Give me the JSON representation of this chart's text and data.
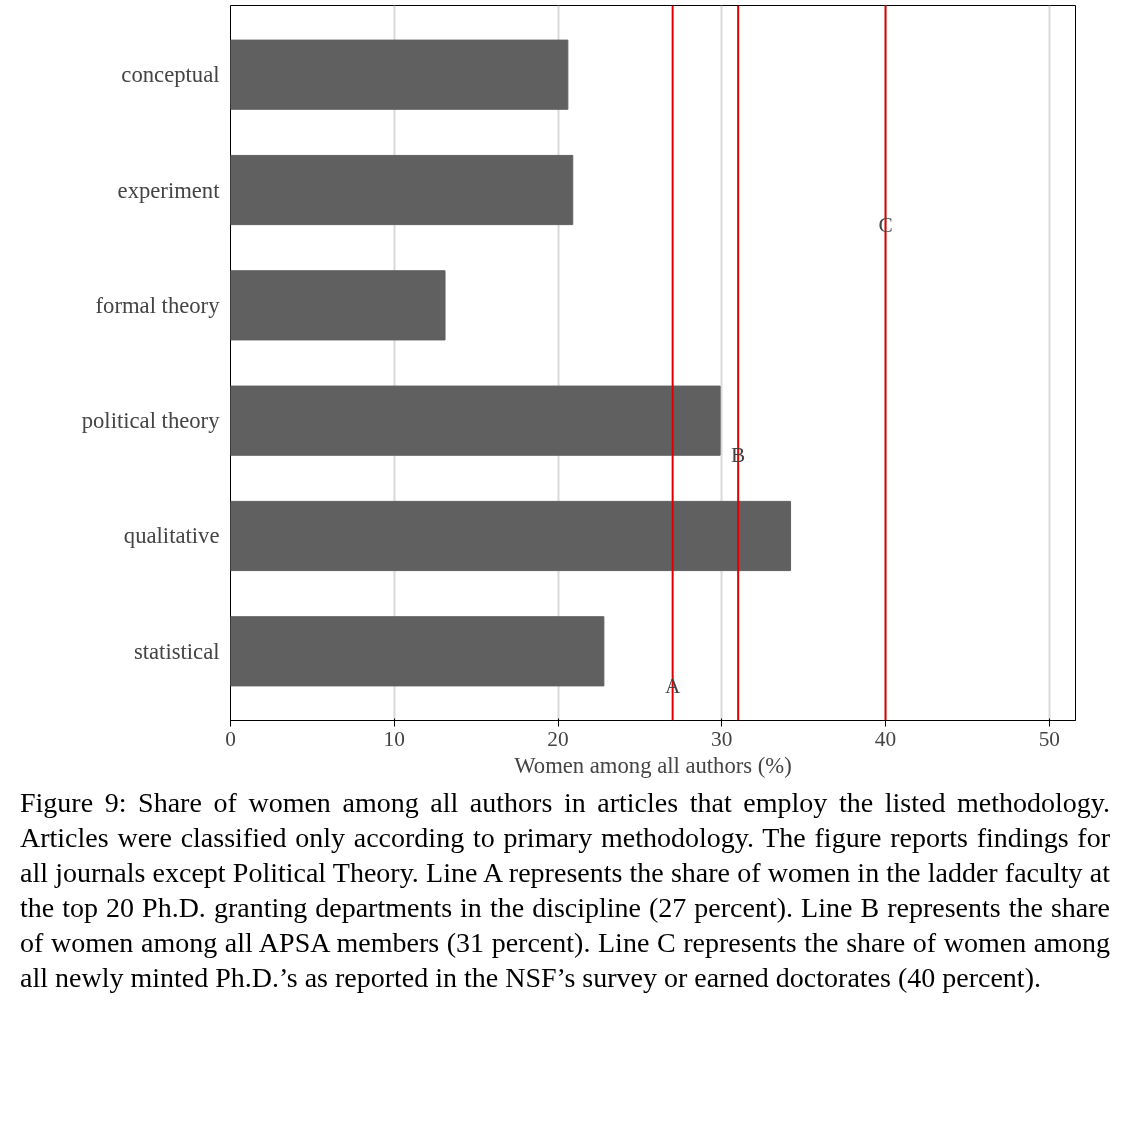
{
  "chart_data": {
    "type": "bar",
    "orientation": "horizontal",
    "xlabel": "Women among all authors (%)",
    "categories": [
      "conceptual",
      "experiment",
      "formal theory",
      "political theory",
      "qualitative",
      "statistical"
    ],
    "values": [
      20.6,
      20.9,
      13.1,
      29.9,
      34.2,
      22.8
    ],
    "color": "#606060",
    "xlim": [
      0,
      51.6
    ],
    "xticks": [
      0,
      10,
      20,
      30,
      40,
      50
    ],
    "grid": "x",
    "ref_lines": [
      {
        "axis": "x",
        "value": 27,
        "color": "#e00000"
      },
      {
        "axis": "x",
        "value": 31,
        "color": "#e00000"
      },
      {
        "axis": "x",
        "value": 40,
        "color": "#e00000"
      }
    ],
    "annotations": [
      {
        "text": "A",
        "x": 27,
        "y": "statistical"
      },
      {
        "text": "B",
        "x": 31,
        "y": "political theory"
      },
      {
        "text": "C",
        "x": 40,
        "y": "experiment"
      },
      "Figure 9: Share of women among all authors in articles that employ the listed methodology. Articles were classified only according to primary methodology. The figure reports findings for all journals except Political Theory. Line A represents the share of women in the ladder faculty at the top 20 Ph.D. granting departments in the discipline (27 percent). Line B represents the share of women among all APSA members (31 percent). Line C represents the share of women among all newly minted Ph.D.’s as reported in the NSF’s survey or earned doctorates (40 percent)."
    ]
  }
}
